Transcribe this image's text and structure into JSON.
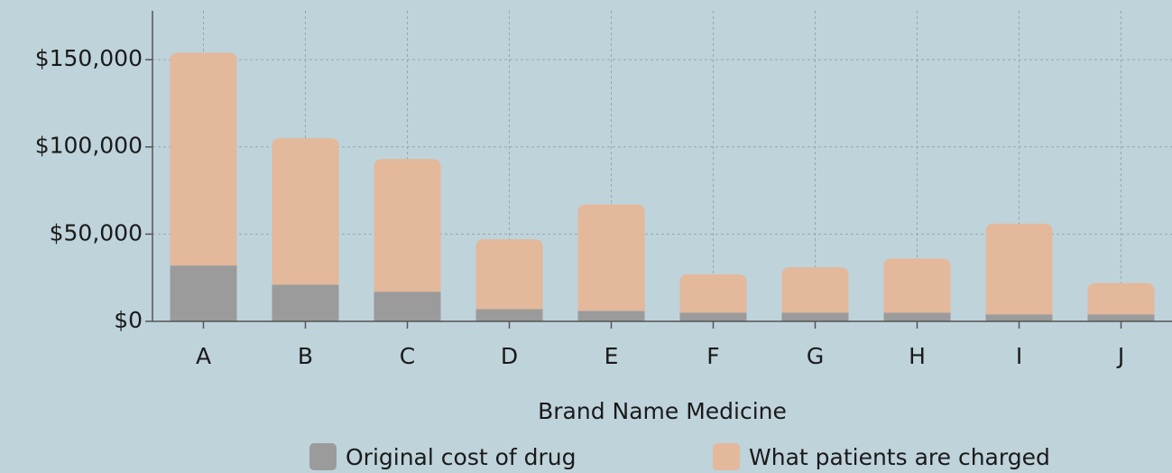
{
  "chart_data": {
    "type": "stacked_bar",
    "x_label": "Brand Name Medicine",
    "categories": [
      "A",
      "B",
      "C",
      "D",
      "E",
      "F",
      "G",
      "H",
      "I",
      "J"
    ],
    "series": [
      {
        "name": "Original cost of drug",
        "color": "#9b9b9b",
        "values": [
          32000,
          21000,
          17000,
          7000,
          6000,
          5000,
          5000,
          5000,
          4000,
          4000
        ]
      },
      {
        "name": "What patients are charged",
        "color": "#e3b89b",
        "values": [
          122000,
          84000,
          76000,
          40000,
          61000,
          22000,
          26000,
          31000,
          52000,
          18000
        ]
      }
    ],
    "ylim": [
      0,
      178000
    ],
    "yticks": [
      {
        "value": 0,
        "label": "$0"
      },
      {
        "value": 50000,
        "label": "$50,000"
      },
      {
        "value": 100000,
        "label": "$100,000"
      },
      {
        "value": 150000,
        "label": "$150,000"
      }
    ],
    "grid": true
  }
}
